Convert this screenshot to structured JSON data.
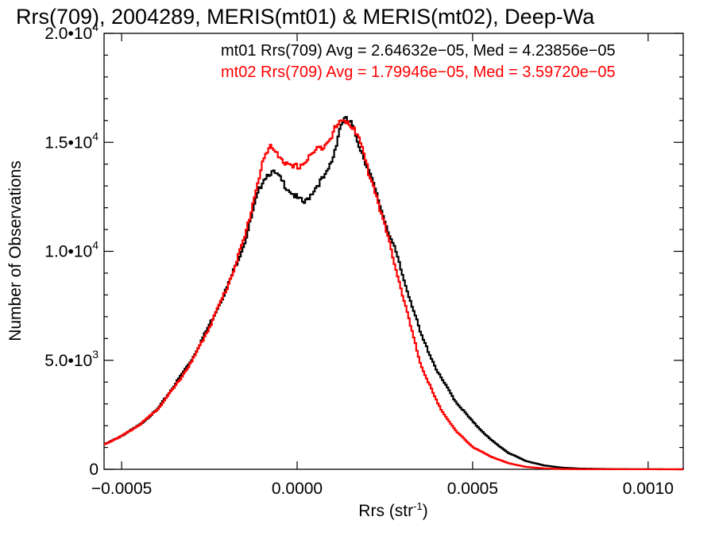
{
  "chart_data": {
    "type": "line",
    "title": "Rrs(709), 2004289, MERIS(mt01) & MERIS(mt02), Deep-Wa",
    "xlabel_main": "Rrs (str",
    "xlabel_sup": "-1",
    "xlabel_close": ")",
    "ylabel": "Number of Observations",
    "xlim": [
      -0.00055,
      0.0011
    ],
    "ylim": [
      0,
      20000
    ],
    "x_ticks": [
      {
        "value": -0.0005,
        "label": "-0.0005"
      },
      {
        "value": 0.0,
        "label": "0.0000"
      },
      {
        "value": 0.0005,
        "label": "0.0005"
      },
      {
        "value": 0.001,
        "label": "0.0010"
      }
    ],
    "y_ticks": [
      {
        "value": 0,
        "mant": "0",
        "exp": ""
      },
      {
        "value": 5000,
        "mant": "5.0•10",
        "exp": "3"
      },
      {
        "value": 10000,
        "mant": "1.0•10",
        "exp": "4"
      },
      {
        "value": 15000,
        "mant": "1.5•10",
        "exp": "4"
      },
      {
        "value": 20000,
        "mant": "2.0•10",
        "exp": "4"
      }
    ],
    "grid": false,
    "legend_position": "top-right",
    "series": [
      {
        "name": "mt01",
        "color": "#000000",
        "stats_text": "mt01 Rrs(709) Avg = 2.64632e−05, Med = 4.23856e−05",
        "points": [
          [
            -0.00055,
            1150
          ],
          [
            -0.0005,
            1550
          ],
          [
            -0.00045,
            2050
          ],
          [
            -0.0004,
            2750
          ],
          [
            -0.00035,
            3900
          ],
          [
            -0.0003,
            5100
          ],
          [
            -0.00025,
            6700
          ],
          [
            -0.0002,
            8400
          ],
          [
            -0.00015,
            10500
          ],
          [
            -0.00012,
            12300
          ],
          [
            -0.0001,
            13300
          ],
          [
            -8e-05,
            13650
          ],
          [
            -6e-05,
            13500
          ],
          [
            -4e-05,
            13100
          ],
          [
            -2e-05,
            12750
          ],
          [
            0.0,
            12400
          ],
          [
            2e-05,
            12200
          ],
          [
            4e-05,
            12700
          ],
          [
            6e-05,
            13150
          ],
          [
            8e-05,
            13450
          ],
          [
            0.0001,
            14300
          ],
          [
            0.00012,
            15700
          ],
          [
            0.00013,
            16050
          ],
          [
            0.00015,
            15900
          ],
          [
            0.00017,
            15100
          ],
          [
            0.0002,
            13800
          ],
          [
            0.00022,
            12800
          ],
          [
            0.00025,
            11300
          ],
          [
            0.00028,
            9900
          ],
          [
            0.0003,
            8800
          ],
          [
            0.00033,
            7300
          ],
          [
            0.00035,
            6200
          ],
          [
            0.0004,
            4400
          ],
          [
            0.00045,
            3100
          ],
          [
            0.0005,
            2150
          ],
          [
            0.00055,
            1350
          ],
          [
            0.0006,
            750
          ],
          [
            0.00065,
            380
          ],
          [
            0.0007,
            180
          ],
          [
            0.00075,
            80
          ],
          [
            0.0008,
            35
          ],
          [
            0.0009,
            10
          ],
          [
            0.0011,
            0
          ]
        ]
      },
      {
        "name": "mt02",
        "color": "#ff0000",
        "stats_text": "mt02 Rrs(709) Avg = 1.79946e−05, Med = 3.59720e−05",
        "points": [
          [
            -0.00055,
            1150
          ],
          [
            -0.0005,
            1550
          ],
          [
            -0.00045,
            2050
          ],
          [
            -0.0004,
            2750
          ],
          [
            -0.00035,
            3800
          ],
          [
            -0.0003,
            5000
          ],
          [
            -0.00025,
            6600
          ],
          [
            -0.0002,
            8400
          ],
          [
            -0.00015,
            10700
          ],
          [
            -0.00012,
            12800
          ],
          [
            -0.0001,
            14100
          ],
          [
            -8e-05,
            14750
          ],
          [
            -6e-05,
            14600
          ],
          [
            -4e-05,
            14100
          ],
          [
            -2e-05,
            13800
          ],
          [
            0.0,
            13900
          ],
          [
            2e-05,
            14100
          ],
          [
            4e-05,
            14450
          ],
          [
            6e-05,
            14700
          ],
          [
            8e-05,
            15000
          ],
          [
            0.0001,
            15450
          ],
          [
            0.00012,
            15900
          ],
          [
            0.00014,
            16000
          ],
          [
            0.00016,
            15700
          ],
          [
            0.00018,
            14900
          ],
          [
            0.0002,
            13700
          ],
          [
            0.00022,
            12800
          ],
          [
            0.00025,
            11000
          ],
          [
            0.00028,
            9200
          ],
          [
            0.0003,
            7900
          ],
          [
            0.00033,
            6000
          ],
          [
            0.00035,
            4800
          ],
          [
            0.0004,
            2950
          ],
          [
            0.00045,
            1750
          ],
          [
            0.0005,
            1000
          ],
          [
            0.00055,
            580
          ],
          [
            0.0006,
            280
          ],
          [
            0.00065,
            110
          ],
          [
            0.0007,
            45
          ],
          [
            0.00075,
            15
          ],
          [
            0.0008,
            5
          ],
          [
            0.0011,
            0
          ]
        ]
      }
    ]
  }
}
